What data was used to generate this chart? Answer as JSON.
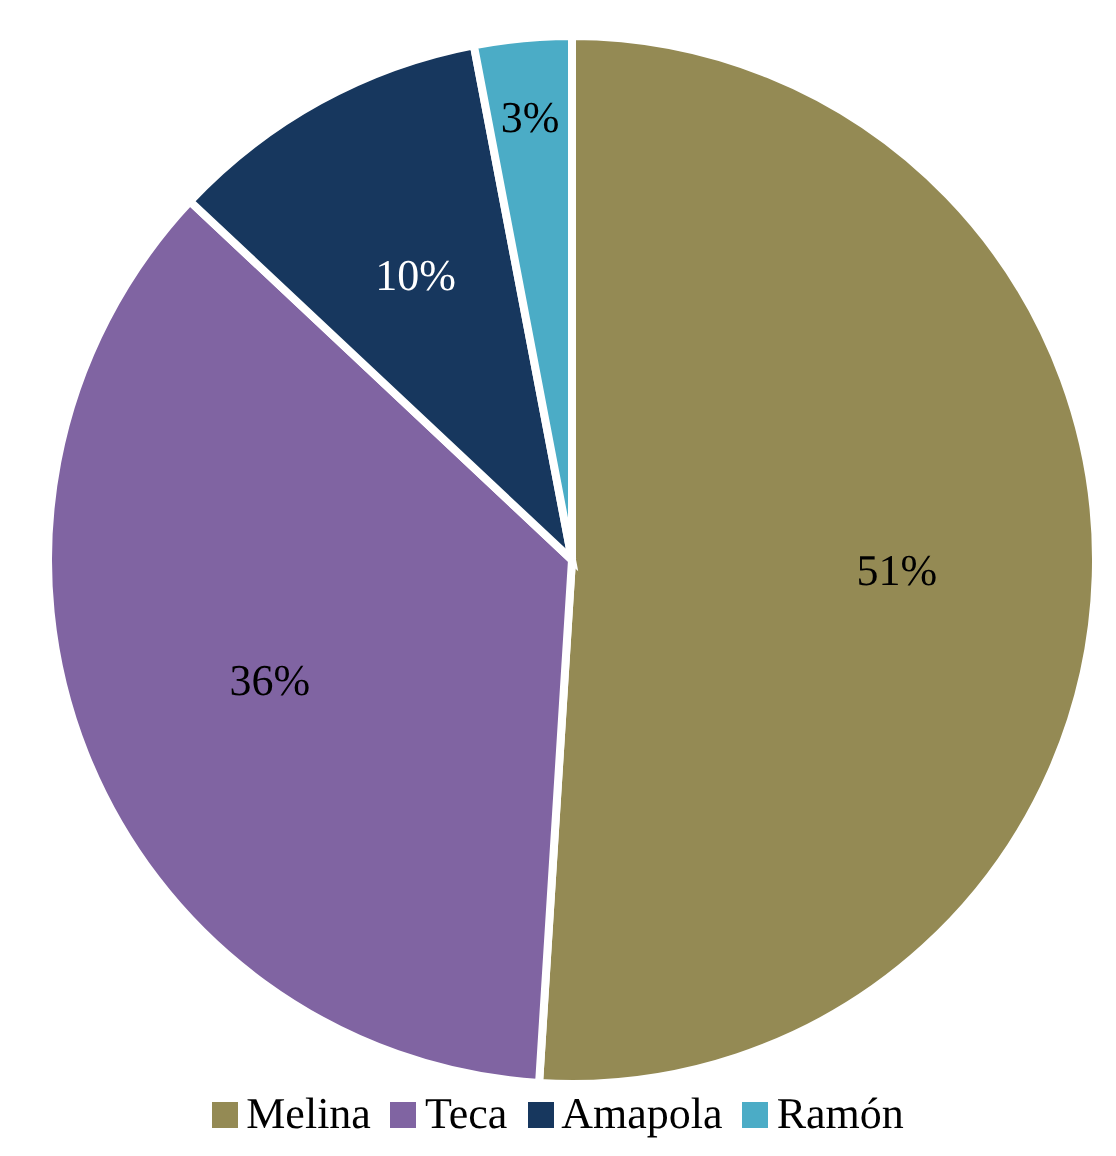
{
  "chart_data": {
    "type": "pie",
    "categories": [
      "Melina",
      "Teca",
      "Amapola",
      "Ramón"
    ],
    "values": [
      51,
      36,
      10,
      3
    ],
    "value_labels": [
      "51%",
      "36%",
      "10%",
      "3%"
    ],
    "colors": [
      "#948a54",
      "#8064a2",
      "#17375e",
      "#4bacc6"
    ],
    "legend": "bottom"
  }
}
